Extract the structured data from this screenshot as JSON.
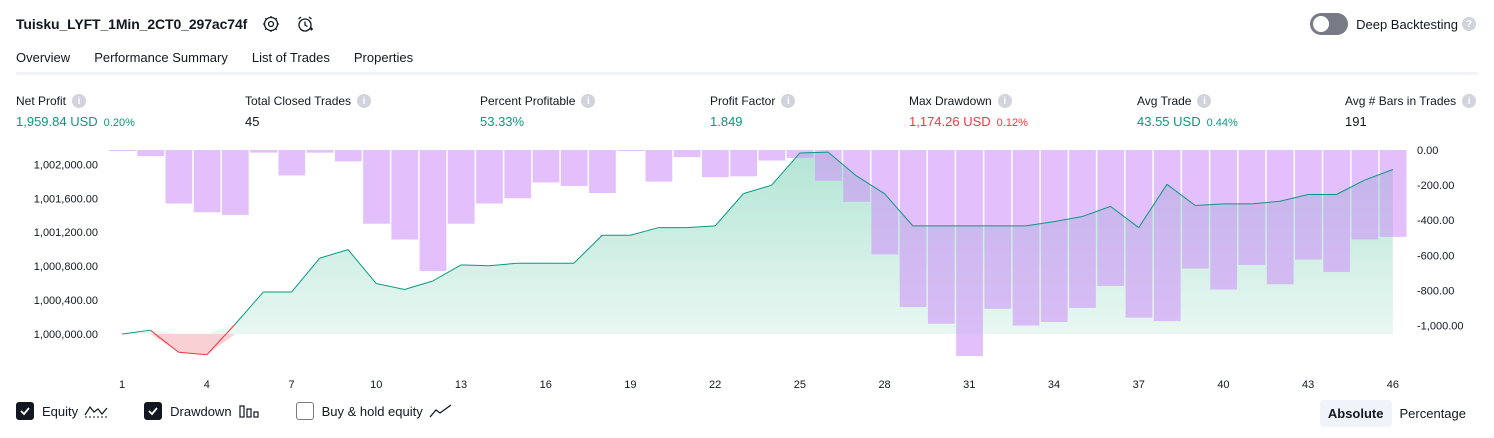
{
  "header": {
    "strategy_name": "Tuisku_LYFT_1Min_2CT0_297ac74f",
    "settings_icon": "gear-icon",
    "alert_icon": "alarm-clock-icon"
  },
  "deep_backtesting": {
    "label": "Deep Backtesting",
    "enabled": false,
    "help": "?"
  },
  "tabs": [
    {
      "label": "Overview",
      "active": true
    },
    {
      "label": "Performance Summary",
      "active": false
    },
    {
      "label": "List of Trades",
      "active": false
    },
    {
      "label": "Properties",
      "active": false
    }
  ],
  "metrics": {
    "net_profit": {
      "label": "Net Profit",
      "value": "1,959.84 USD",
      "pct": "0.20%"
    },
    "total_closed_trades": {
      "label": "Total Closed Trades",
      "value": "45"
    },
    "percent_profitable": {
      "label": "Percent Profitable",
      "value": "53.33%"
    },
    "profit_factor": {
      "label": "Profit Factor",
      "value": "1.849"
    },
    "max_drawdown": {
      "label": "Max Drawdown",
      "value": "1,174.26 USD",
      "pct": "0.12%"
    },
    "avg_trade": {
      "label": "Avg Trade",
      "value": "43.55 USD",
      "pct": "0.44%"
    },
    "avg_bars": {
      "label": "Avg # Bars in Trades",
      "value": "191"
    }
  },
  "chart_data": {
    "type": "line",
    "x": [
      1,
      2,
      3,
      4,
      5,
      6,
      7,
      8,
      9,
      10,
      11,
      12,
      13,
      14,
      15,
      16,
      17,
      18,
      19,
      20,
      21,
      22,
      23,
      24,
      25,
      26,
      27,
      28,
      29,
      30,
      31,
      32,
      33,
      34,
      35,
      36,
      37,
      38,
      39,
      40,
      41,
      42,
      43,
      44,
      45,
      46
    ],
    "x_ticks": [
      1,
      4,
      7,
      10,
      13,
      16,
      19,
      22,
      25,
      28,
      31,
      34,
      37,
      40,
      43,
      46
    ],
    "y_left_ticks": [
      "1,000,000.00",
      "1,000,400.00",
      "1,000,800.00",
      "1,001,200.00",
      "1,001,600.00",
      "1,002,000.00"
    ],
    "y_right_ticks": [
      "0.00",
      "-200.00",
      "-400.00",
      "-600.00",
      "-800.00",
      "-1,000.00"
    ],
    "ylim_left": [
      999700,
      1002200
    ],
    "ylim_right": [
      -1250,
      0
    ],
    "series": [
      {
        "name": "Equity",
        "color": "#089981",
        "values": [
          1000000,
          1000045,
          999785,
          999755,
          1000115,
          1000495,
          1000495,
          1000895,
          1000995,
          1000595,
          1000525,
          1000625,
          1000815,
          1000805,
          1000835,
          1000835,
          1000835,
          1001165,
          1001165,
          1001255,
          1001255,
          1001275,
          1001655,
          1001755,
          1002135,
          1002145,
          1001865,
          1001655,
          1001275,
          1001275,
          1001275,
          1001275,
          1001275,
          1001325,
          1001385,
          1001505,
          1001255,
          1001765,
          1001515,
          1001535,
          1001535,
          1001565,
          1001645,
          1001645,
          1001815,
          1001940
        ]
      },
      {
        "name": "Drawdown",
        "color": "#ce93d8",
        "values": [
          -5,
          -35,
          -305,
          -355,
          -370,
          -15,
          -145,
          -15,
          -65,
          -420,
          -510,
          -690,
          -420,
          -305,
          -275,
          -185,
          -205,
          -245,
          -5,
          -180,
          -40,
          -155,
          -150,
          -60,
          -45,
          -175,
          -295,
          -595,
          -895,
          -990,
          -1174,
          -905,
          -1000,
          -980,
          -900,
          -775,
          -955,
          -975,
          -675,
          -795,
          -655,
          -765,
          -625,
          -695,
          -510,
          -495
        ]
      }
    ]
  },
  "legend": {
    "equity": {
      "label": "Equity",
      "checked": true,
      "icon": "equity-line-icon"
    },
    "drawdown": {
      "label": "Drawdown",
      "checked": true,
      "icon": "bars-icon"
    },
    "buy_hold": {
      "label": "Buy & hold equity",
      "checked": false,
      "icon": "trend-line-icon"
    }
  },
  "mode": {
    "absolute": "Absolute",
    "percentage": "Percentage",
    "selected": "Absolute"
  }
}
